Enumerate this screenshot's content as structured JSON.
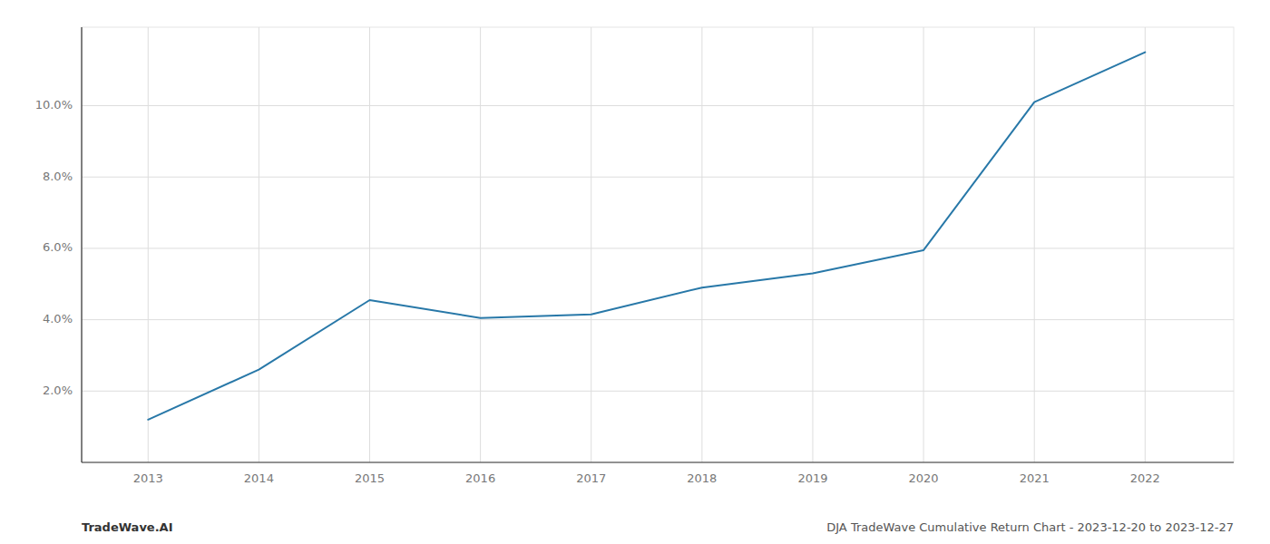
{
  "chart_data": {
    "type": "line",
    "x": [
      2013,
      2014,
      2015,
      2016,
      2017,
      2018,
      2019,
      2020,
      2021,
      2022
    ],
    "values": [
      1.2,
      2.6,
      4.55,
      4.05,
      4.15,
      4.9,
      5.3,
      5.95,
      10.1,
      11.5
    ],
    "color": "#2878a8",
    "xlim": [
      2012.4,
      2022.8
    ],
    "xticks": [
      2013,
      2014,
      2015,
      2016,
      2017,
      2018,
      2019,
      2020,
      2021,
      2022
    ],
    "ylim": [
      0.0,
      12.2
    ],
    "yticks": [
      {
        "value": 2.0,
        "label": "2.0%"
      },
      {
        "value": 4.0,
        "label": "4.0%"
      },
      {
        "value": 6.0,
        "label": "6.0%"
      },
      {
        "value": 8.0,
        "label": "8.0%"
      },
      {
        "value": 10.0,
        "label": "10.0%"
      }
    ],
    "grid": true,
    "annotations": [
      "TradeWave.AI",
      "DJA TradeWave Cumulative Return Chart - 2023-12-20 to 2023-12-27"
    ]
  }
}
